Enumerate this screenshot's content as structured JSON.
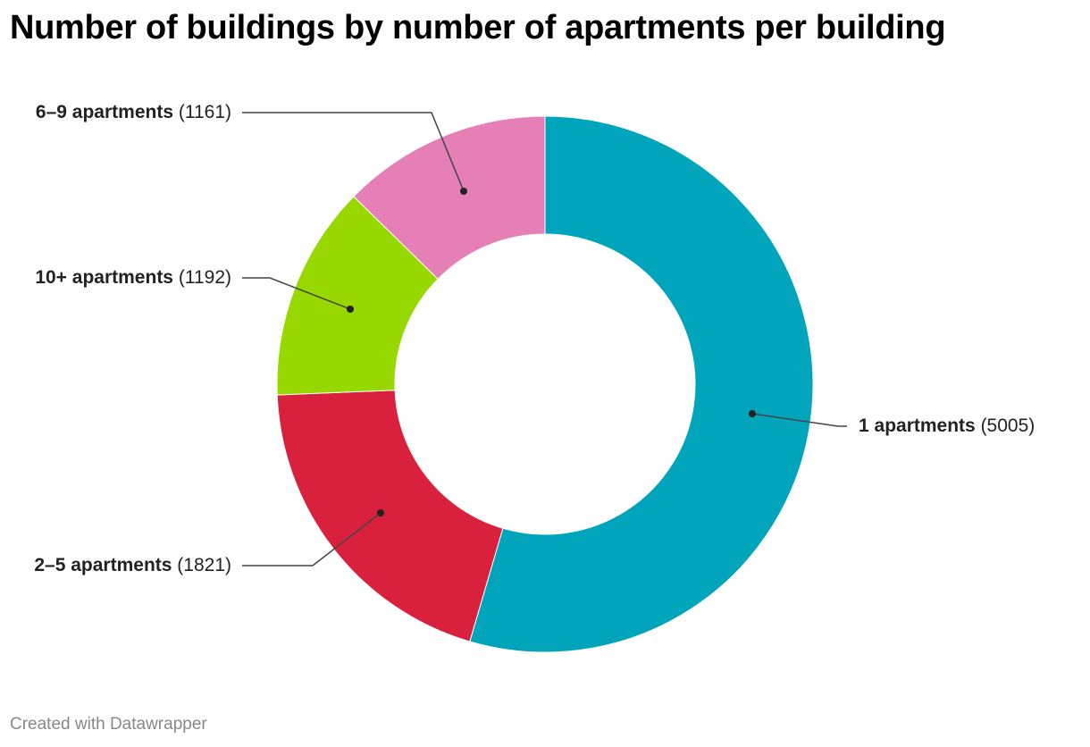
{
  "chart_data": {
    "type": "pie",
    "variant": "donut",
    "title": "Number of buildings by number of apartments per building",
    "slices": [
      {
        "label": "1 apartments",
        "value": 5005,
        "value_text": "(5005)",
        "color": "#00a5bc"
      },
      {
        "label": "2–5 apartments",
        "value": 1821,
        "value_text": "(1821)",
        "color": "#d9213e"
      },
      {
        "label": "10+ apartments",
        "value": 1192,
        "value_text": "(1192)",
        "color": "#97d800"
      },
      {
        "label": "6–9 apartments",
        "value": 1161,
        "value_text": "(1161)",
        "color": "#e57fb6"
      }
    ]
  },
  "footer": "Created with Datawrapper"
}
